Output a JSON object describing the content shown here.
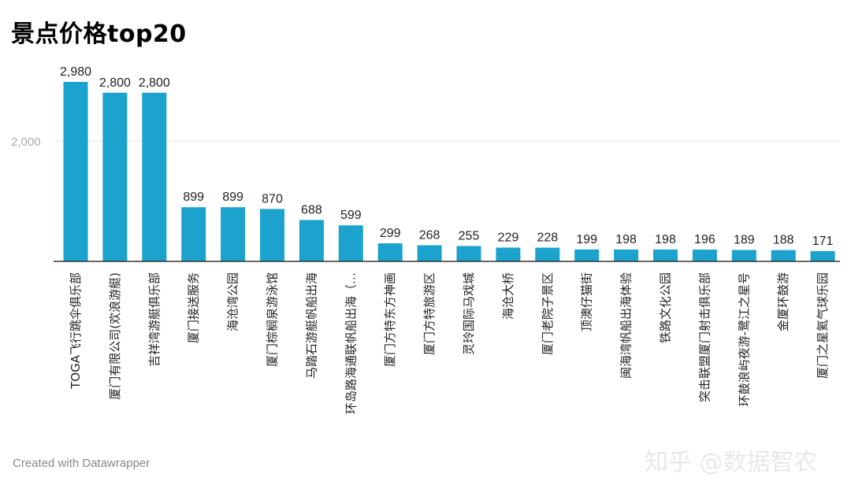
{
  "title": "景点价格top20",
  "footer": "Created with Datawrapper",
  "watermark": "知乎 @数据智农",
  "colors": {
    "bar": "#1ba2cd",
    "gridline": "#e4e4e4",
    "baseline": "#333333",
    "tick_text": "#aaaaaa",
    "value_text": "#222222",
    "category_text": "#222222"
  },
  "chart_data": {
    "type": "bar",
    "title": "景点价格top20",
    "xlabel": "",
    "ylabel": "",
    "ylim": [
      0,
      3000
    ],
    "yticks": [
      2000
    ],
    "ytick_labels": [
      "2,000"
    ],
    "grid": true,
    "categories": [
      "TOGA飞行跳伞俱乐部",
      "厦门有限公司(欢浪游艇)",
      "吉祥湾游艇俱乐部",
      "厦门接送服务",
      "海沧湾公园",
      "厦门棕榈泉游泳馆",
      "马踏石游艇帆船出海",
      "环岛路海通联帆船出海（…",
      "厦门方特东方神画",
      "厦门方特旅游区",
      "灵玲国际马戏城",
      "海沧大桥",
      "厦门老院子景区",
      "顶澳仔猫街",
      "闽海湾帆船出海体验",
      "铁路文化公园",
      "突击联盟厦门射击俱乐部",
      "环鼓浪屿夜游-鹭江之星号",
      "金厦环鼓游",
      "厦门之星氦气球乐园"
    ],
    "values": [
      2980,
      2800,
      2800,
      899,
      899,
      870,
      688,
      599,
      299,
      268,
      255,
      229,
      228,
      199,
      198,
      198,
      196,
      189,
      188,
      171
    ],
    "value_labels": [
      "2,980",
      "2,800",
      "2,800",
      "899",
      "899",
      "870",
      "688",
      "599",
      "299",
      "268",
      "255",
      "229",
      "228",
      "199",
      "198",
      "198",
      "196",
      "189",
      "188",
      "171"
    ]
  }
}
